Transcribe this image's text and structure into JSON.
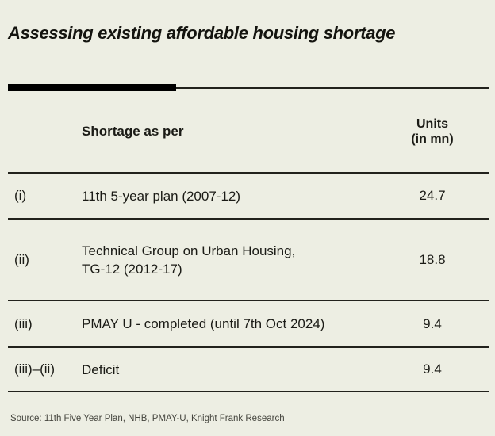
{
  "chart_data": {
    "type": "table",
    "title": "Assessing existing affordable housing shortage",
    "columns": [
      "",
      "Shortage as per",
      "Units (in mn)"
    ],
    "rows": [
      [
        "(i)",
        "11th 5-year plan (2007-12)",
        "24.7"
      ],
      [
        "(ii)",
        "Technical Group on Urban Housing, TG-12 (2012-17)",
        "18.8"
      ],
      [
        "(iii)",
        "PMAY U - completed (until 7th Oct 2024)",
        "9.4"
      ],
      [
        "(iii)–(ii)",
        "Deficit",
        "9.4"
      ]
    ],
    "source": "Source: 11th Five Year Plan, NHB, PMAY-U, Knight Frank Research",
    "layout_hints": "header separated by rule; thick accent bar top-left above table; values column center-aligned"
  },
  "view": {
    "units_header_lines": [
      "Units",
      "(in mn)"
    ],
    "row2_label_lines": [
      "Technical Group on Urban Housing,",
      "TG-12 (2012-17)"
    ]
  },
  "colors": {
    "background": "#EDEEE3",
    "text": "#1B1B16",
    "rule": "#22221C",
    "accent_bar": "#000000",
    "source_text": "#45453E"
  }
}
